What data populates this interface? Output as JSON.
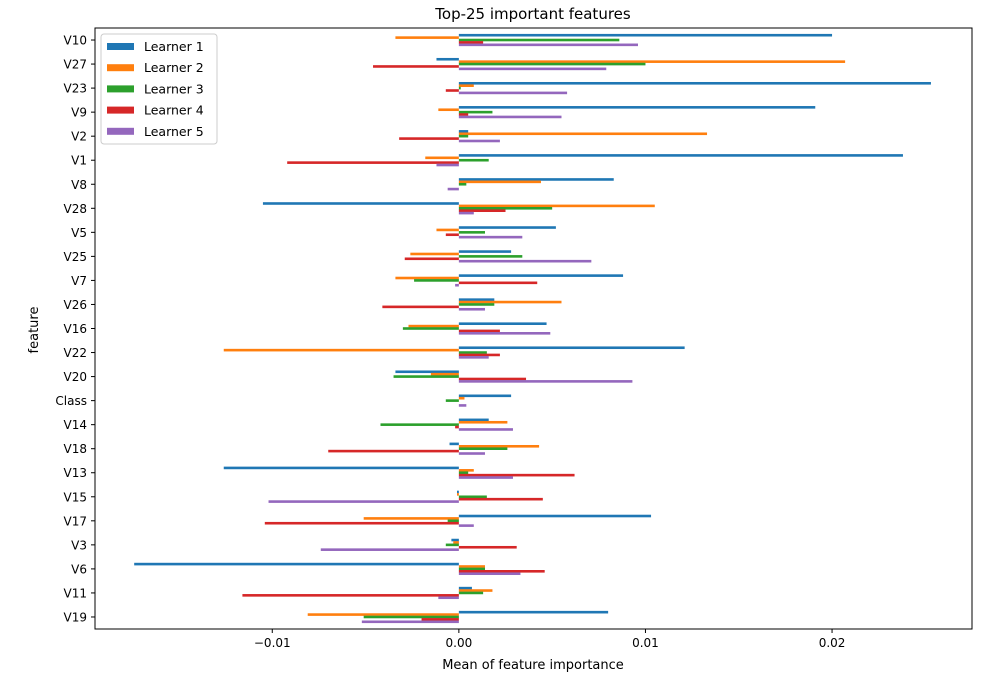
{
  "chart_data": {
    "type": "bar",
    "orientation": "horizontal",
    "title": "Top-25 important features",
    "xlabel": "Mean of feature importance",
    "ylabel": "feature",
    "xlim": [
      -0.0195,
      0.0275
    ],
    "xticks": [
      -0.01,
      0,
      0.01,
      0.02
    ],
    "xtick_labels": [
      "−0.01",
      "0.00",
      "0.01",
      "0.02"
    ],
    "grid": false,
    "legend_position": "top-left",
    "categories": [
      "V10",
      "V27",
      "V23",
      "V9",
      "V2",
      "V1",
      "V8",
      "V28",
      "V5",
      "V25",
      "V7",
      "V26",
      "V16",
      "V22",
      "V20",
      "Class",
      "V14",
      "V18",
      "V13",
      "V15",
      "V17",
      "V3",
      "V6",
      "V11",
      "V19"
    ],
    "series": [
      {
        "name": "Learner 1",
        "color": "#1f77b4",
        "values": [
          0.02,
          -0.0012,
          0.0253,
          0.0191,
          0.0005,
          0.0238,
          0.0083,
          -0.0105,
          0.0052,
          0.0028,
          0.0088,
          0.0019,
          0.0047,
          0.0121,
          -0.0034,
          0.0028,
          0.0016,
          -0.0005,
          -0.0126,
          -0.0001,
          0.0103,
          -0.0004,
          -0.0174,
          0.0007,
          0.008
        ]
      },
      {
        "name": "Learner 2",
        "color": "#ff7f0e",
        "values": [
          -0.0034,
          0.0207,
          0.0008,
          -0.0011,
          0.0133,
          -0.0018,
          0.0044,
          0.0105,
          -0.0012,
          -0.0026,
          -0.0034,
          0.0055,
          -0.0027,
          -0.0126,
          -0.0015,
          0.0003,
          0.0026,
          0.0043,
          0.0008,
          -0.0001,
          -0.0051,
          -0.0003,
          0.0014,
          0.0018,
          -0.0081
        ]
      },
      {
        "name": "Learner 3",
        "color": "#2ca02c",
        "values": [
          0.0086,
          0.01,
          0.0001,
          0.0018,
          0.0005,
          0.0016,
          0.0004,
          0.005,
          0.0014,
          0.0034,
          -0.0024,
          0.0019,
          -0.003,
          0.0015,
          -0.0035,
          -0.0007,
          -0.0042,
          0.0026,
          0.0005,
          0.0015,
          -0.0006,
          -0.0007,
          0.0014,
          0.0013,
          -0.0051
        ]
      },
      {
        "name": "Learner 4",
        "color": "#d62728",
        "values": [
          0.0013,
          -0.0046,
          -0.0007,
          0.0005,
          -0.0032,
          -0.0092,
          0.0,
          0.0025,
          -0.0007,
          -0.0029,
          0.0042,
          -0.0041,
          0.0022,
          0.0022,
          0.0036,
          0.0,
          -0.0002,
          -0.007,
          0.0062,
          0.0045,
          -0.0104,
          0.0031,
          0.0046,
          -0.0116,
          -0.002
        ]
      },
      {
        "name": "Learner 5",
        "color": "#9467bd",
        "values": [
          0.0096,
          0.0079,
          0.0058,
          0.0055,
          0.0022,
          -0.0012,
          -0.0006,
          0.0008,
          0.0034,
          0.0071,
          -0.0002,
          0.0014,
          0.0049,
          0.0016,
          0.0093,
          0.0004,
          0.0029,
          0.0014,
          0.0029,
          -0.0102,
          0.0008,
          -0.0074,
          0.0033,
          -0.0011,
          -0.0052
        ]
      }
    ]
  }
}
